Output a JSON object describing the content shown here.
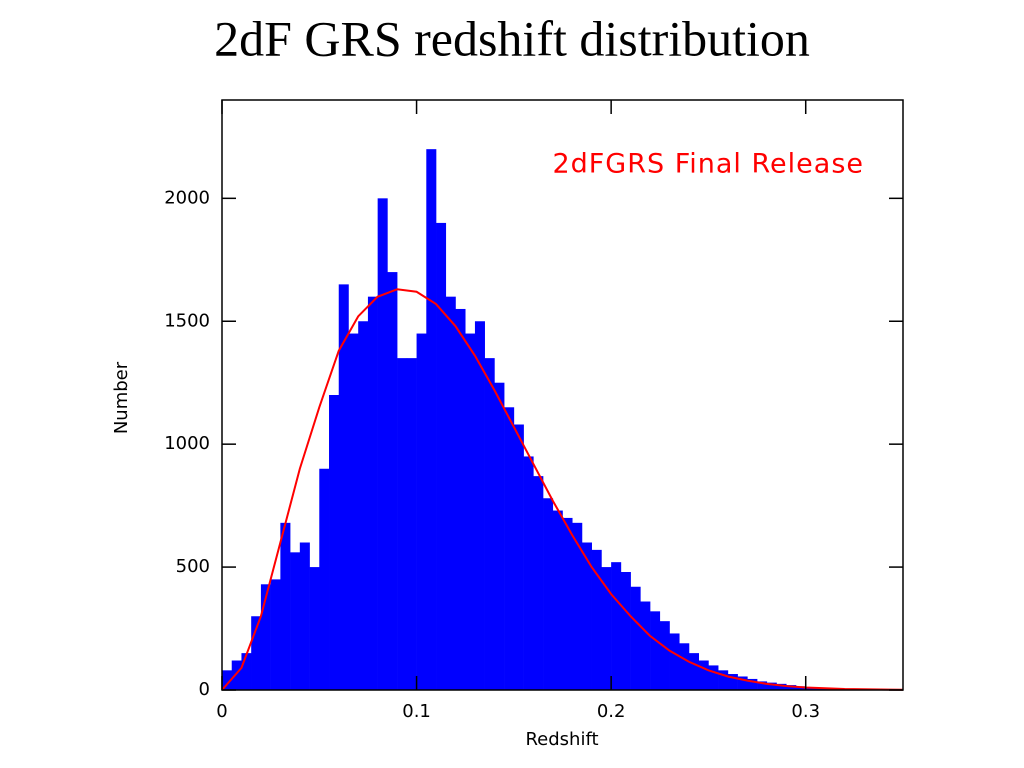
{
  "chart_data": {
    "type": "histogram",
    "title": "2dF GRS redshift distribution",
    "xlabel": "Redshift",
    "ylabel": "Number",
    "color": "#0000ff",
    "bins": [
      0,
      0.005,
      0.01,
      0.015,
      0.02,
      0.025,
      0.03,
      0.035,
      0.04,
      0.045,
      0.05,
      0.055,
      0.06,
      0.065,
      0.07,
      0.075,
      0.08,
      0.085,
      0.09,
      0.095,
      0.1,
      0.105,
      0.11,
      0.115,
      0.12,
      0.125,
      0.13,
      0.135,
      0.14,
      0.145,
      0.15,
      0.155,
      0.16,
      0.165,
      0.17,
      0.175,
      0.18,
      0.185,
      0.19,
      0.195,
      0.2,
      0.205,
      0.21,
      0.215,
      0.22,
      0.225,
      0.23,
      0.235,
      0.24,
      0.245,
      0.25,
      0.255,
      0.26,
      0.265,
      0.27,
      0.275,
      0.28,
      0.285,
      0.29,
      0.295,
      0.3,
      0.305,
      0.31,
      0.315,
      0.32,
      0.325,
      0.33,
      0.335,
      0.34,
      0.345,
      0.35
    ],
    "counts": [
      80,
      120,
      150,
      300,
      430,
      450,
      680,
      560,
      600,
      500,
      900,
      1200,
      1650,
      1450,
      1500,
      1600,
      2000,
      1700,
      1350,
      1350,
      1450,
      2200,
      1900,
      1600,
      1550,
      1450,
      1500,
      1350,
      1250,
      1150,
      1080,
      950,
      870,
      780,
      730,
      700,
      680,
      600,
      570,
      500,
      520,
      480,
      420,
      360,
      320,
      280,
      230,
      190,
      150,
      120,
      100,
      80,
      65,
      55,
      45,
      35,
      30,
      25,
      20,
      15,
      12,
      10,
      8,
      6,
      5,
      4,
      3,
      2,
      2,
      1
    ],
    "line": {
      "name": "2dFGRS Final Release",
      "color": "#ff0000",
      "x": [
        0,
        0.01,
        0.02,
        0.03,
        0.04,
        0.05,
        0.06,
        0.07,
        0.08,
        0.09,
        0.1,
        0.11,
        0.12,
        0.13,
        0.14,
        0.15,
        0.16,
        0.17,
        0.18,
        0.19,
        0.2,
        0.21,
        0.22,
        0.23,
        0.24,
        0.25,
        0.26,
        0.27,
        0.28,
        0.29,
        0.3,
        0.32,
        0.35
      ],
      "values": [
        0,
        90,
        300,
        600,
        900,
        1150,
        1380,
        1520,
        1600,
        1630,
        1620,
        1570,
        1480,
        1360,
        1220,
        1070,
        920,
        770,
        630,
        500,
        390,
        300,
        220,
        160,
        115,
        80,
        55,
        38,
        25,
        16,
        10,
        4,
        1
      ]
    },
    "xlim": [
      0,
      0.35
    ],
    "ylim": [
      0,
      2400
    ],
    "xticks": [
      0,
      0.1,
      0.2,
      0.3
    ],
    "yticks": [
      0,
      500,
      1000,
      1500,
      2000
    ]
  }
}
